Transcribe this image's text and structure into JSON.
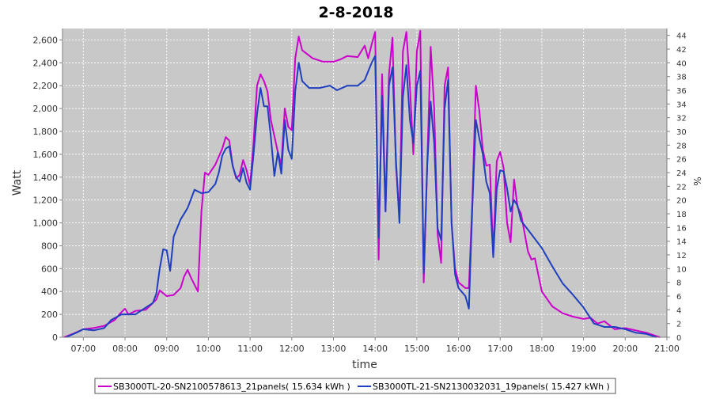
{
  "chart_data": {
    "type": "line",
    "title": "2-8-2018",
    "xlabel": "time",
    "ylabel": "Watt",
    "y2label": "%",
    "ylim": [
      0,
      2700
    ],
    "y2lim": [
      0,
      45
    ],
    "xlim": [
      "06:30",
      "21:00"
    ],
    "grid": true,
    "legend_position": "bottom",
    "y_ticks": [
      "0",
      "200",
      "400",
      "600",
      "800",
      "1,000",
      "1,200",
      "1,400",
      "1,600",
      "1,800",
      "2,000",
      "2,200",
      "2,400",
      "2,600"
    ],
    "y2_ticks": [
      "0",
      "2",
      "4",
      "6",
      "8",
      "10",
      "12",
      "14",
      "16",
      "18",
      "20",
      "22",
      "24",
      "26",
      "28",
      "30",
      "32",
      "34",
      "36",
      "38",
      "40",
      "42",
      "44"
    ],
    "x_ticks": [
      "07:00",
      "08:00",
      "09:00",
      "10:00",
      "11:00",
      "12:00",
      "13:00",
      "14:00",
      "15:00",
      "16:00",
      "17:00",
      "18:00",
      "19:00",
      "20:00",
      "21:00"
    ],
    "series": [
      {
        "name": "SB3000TL-20-SN2100578613_21panels( 15.634 kWh )",
        "color": "#cc00cc",
        "points": [
          [
            "06:32",
            0
          ],
          [
            "06:45",
            30
          ],
          [
            "07:00",
            70
          ],
          [
            "07:15",
            80
          ],
          [
            "07:30",
            100
          ],
          [
            "07:45",
            150
          ],
          [
            "07:55",
            220
          ],
          [
            "08:00",
            250
          ],
          [
            "08:05",
            200
          ],
          [
            "08:15",
            230
          ],
          [
            "08:30",
            240
          ],
          [
            "08:45",
            330
          ],
          [
            "08:50",
            410
          ],
          [
            "09:00",
            360
          ],
          [
            "09:10",
            370
          ],
          [
            "09:20",
            430
          ],
          [
            "09:25",
            530
          ],
          [
            "09:30",
            590
          ],
          [
            "09:35",
            520
          ],
          [
            "09:45",
            400
          ],
          [
            "09:50",
            1100
          ],
          [
            "09:55",
            1440
          ],
          [
            "10:00",
            1420
          ],
          [
            "10:10",
            1510
          ],
          [
            "10:20",
            1650
          ],
          [
            "10:25",
            1750
          ],
          [
            "10:30",
            1720
          ],
          [
            "10:35",
            1500
          ],
          [
            "10:40",
            1390
          ],
          [
            "10:45",
            1420
          ],
          [
            "10:50",
            1550
          ],
          [
            "10:55",
            1460
          ],
          [
            "11:00",
            1330
          ],
          [
            "11:05",
            1700
          ],
          [
            "11:10",
            2200
          ],
          [
            "11:15",
            2300
          ],
          [
            "11:20",
            2240
          ],
          [
            "11:25",
            2150
          ],
          [
            "11:30",
            1900
          ],
          [
            "11:35",
            1760
          ],
          [
            "11:40",
            1620
          ],
          [
            "11:45",
            1510
          ],
          [
            "11:50",
            2000
          ],
          [
            "11:55",
            1840
          ],
          [
            "12:00",
            1810
          ],
          [
            "12:05",
            2440
          ],
          [
            "12:10",
            2630
          ],
          [
            "12:15",
            2510
          ],
          [
            "12:30",
            2440
          ],
          [
            "12:45",
            2410
          ],
          [
            "13:00",
            2410
          ],
          [
            "13:10",
            2430
          ],
          [
            "13:20",
            2460
          ],
          [
            "13:35",
            2450
          ],
          [
            "13:45",
            2550
          ],
          [
            "13:50",
            2440
          ],
          [
            "13:55",
            2560
          ],
          [
            "14:00",
            2670
          ],
          [
            "14:05",
            680
          ],
          [
            "14:10",
            2300
          ],
          [
            "14:15",
            1100
          ],
          [
            "14:20",
            2300
          ],
          [
            "14:25",
            2620
          ],
          [
            "14:30",
            1500
          ],
          [
            "14:35",
            1050
          ],
          [
            "14:40",
            2500
          ],
          [
            "14:45",
            2670
          ],
          [
            "14:50",
            2200
          ],
          [
            "14:55",
            1600
          ],
          [
            "15:00",
            2500
          ],
          [
            "15:05",
            2680
          ],
          [
            "15:10",
            480
          ],
          [
            "15:15",
            1500
          ],
          [
            "15:20",
            2540
          ],
          [
            "15:25",
            2000
          ],
          [
            "15:30",
            900
          ],
          [
            "15:35",
            650
          ],
          [
            "15:40",
            2200
          ],
          [
            "15:45",
            2360
          ],
          [
            "15:50",
            1000
          ],
          [
            "15:55",
            600
          ],
          [
            "16:00",
            480
          ],
          [
            "16:10",
            430
          ],
          [
            "16:15",
            430
          ],
          [
            "16:20",
            1200
          ],
          [
            "16:25",
            2200
          ],
          [
            "16:30",
            1980
          ],
          [
            "16:35",
            1640
          ],
          [
            "16:40",
            1500
          ],
          [
            "16:45",
            1510
          ],
          [
            "16:50",
            720
          ],
          [
            "16:55",
            1540
          ],
          [
            "17:00",
            1620
          ],
          [
            "17:05",
            1480
          ],
          [
            "17:10",
            1000
          ],
          [
            "17:15",
            830
          ],
          [
            "17:20",
            1380
          ],
          [
            "17:25",
            1140
          ],
          [
            "17:30",
            1080
          ],
          [
            "17:40",
            750
          ],
          [
            "17:45",
            680
          ],
          [
            "17:50",
            690
          ],
          [
            "18:00",
            400
          ],
          [
            "18:15",
            270
          ],
          [
            "18:30",
            210
          ],
          [
            "18:45",
            180
          ],
          [
            "19:00",
            160
          ],
          [
            "19:10",
            170
          ],
          [
            "19:20",
            120
          ],
          [
            "19:30",
            140
          ],
          [
            "19:45",
            70
          ],
          [
            "20:00",
            80
          ],
          [
            "20:15",
            60
          ],
          [
            "20:30",
            40
          ],
          [
            "20:45",
            10
          ],
          [
            "20:50",
            0
          ]
        ]
      },
      {
        "name": "SB3000TL-21-SN2130032031_19panels( 15.427 kWh )",
        "color": "#1f3fbf",
        "points": [
          [
            "06:35",
            0
          ],
          [
            "06:50",
            40
          ],
          [
            "07:00",
            70
          ],
          [
            "07:15",
            60
          ],
          [
            "07:30",
            80
          ],
          [
            "07:40",
            150
          ],
          [
            "07:55",
            200
          ],
          [
            "08:05",
            200
          ],
          [
            "08:15",
            200
          ],
          [
            "08:30",
            260
          ],
          [
            "08:40",
            300
          ],
          [
            "08:45",
            380
          ],
          [
            "08:50",
            600
          ],
          [
            "08:55",
            770
          ],
          [
            "09:00",
            760
          ],
          [
            "09:05",
            580
          ],
          [
            "09:10",
            880
          ],
          [
            "09:20",
            1030
          ],
          [
            "09:30",
            1130
          ],
          [
            "09:40",
            1290
          ],
          [
            "09:50",
            1260
          ],
          [
            "10:00",
            1270
          ],
          [
            "10:10",
            1340
          ],
          [
            "10:15",
            1440
          ],
          [
            "10:20",
            1590
          ],
          [
            "10:25",
            1650
          ],
          [
            "10:30",
            1670
          ],
          [
            "10:35",
            1500
          ],
          [
            "10:40",
            1400
          ],
          [
            "10:45",
            1360
          ],
          [
            "10:50",
            1480
          ],
          [
            "10:55",
            1350
          ],
          [
            "11:00",
            1290
          ],
          [
            "11:05",
            1600
          ],
          [
            "11:10",
            1950
          ],
          [
            "11:15",
            2180
          ],
          [
            "11:20",
            2020
          ],
          [
            "11:25",
            2020
          ],
          [
            "11:30",
            1750
          ],
          [
            "11:35",
            1410
          ],
          [
            "11:40",
            1620
          ],
          [
            "11:45",
            1430
          ],
          [
            "11:50",
            1900
          ],
          [
            "11:55",
            1640
          ],
          [
            "12:00",
            1560
          ],
          [
            "12:05",
            2150
          ],
          [
            "12:10",
            2400
          ],
          [
            "12:15",
            2240
          ],
          [
            "12:25",
            2180
          ],
          [
            "12:40",
            2180
          ],
          [
            "12:55",
            2200
          ],
          [
            "13:05",
            2160
          ],
          [
            "13:20",
            2200
          ],
          [
            "13:35",
            2200
          ],
          [
            "13:45",
            2250
          ],
          [
            "13:55",
            2400
          ],
          [
            "14:00",
            2460
          ],
          [
            "14:05",
            870
          ],
          [
            "14:10",
            2110
          ],
          [
            "14:15",
            1100
          ],
          [
            "14:20",
            2200
          ],
          [
            "14:25",
            2360
          ],
          [
            "14:30",
            1550
          ],
          [
            "14:35",
            1000
          ],
          [
            "14:40",
            2100
          ],
          [
            "14:45",
            2380
          ],
          [
            "14:50",
            1900
          ],
          [
            "14:55",
            1700
          ],
          [
            "15:00",
            2200
          ],
          [
            "15:05",
            2330
          ],
          [
            "15:10",
            560
          ],
          [
            "15:15",
            1500
          ],
          [
            "15:20",
            2060
          ],
          [
            "15:25",
            1700
          ],
          [
            "15:30",
            950
          ],
          [
            "15:35",
            850
          ],
          [
            "15:40",
            2000
          ],
          [
            "15:45",
            2250
          ],
          [
            "15:50",
            1000
          ],
          [
            "15:55",
            550
          ],
          [
            "16:00",
            430
          ],
          [
            "16:10",
            360
          ],
          [
            "16:15",
            250
          ],
          [
            "16:20",
            1150
          ],
          [
            "16:25",
            1900
          ],
          [
            "16:30",
            1740
          ],
          [
            "16:35",
            1600
          ],
          [
            "16:40",
            1360
          ],
          [
            "16:45",
            1260
          ],
          [
            "16:50",
            700
          ],
          [
            "16:55",
            1300
          ],
          [
            "17:00",
            1460
          ],
          [
            "17:05",
            1450
          ],
          [
            "17:10",
            1300
          ],
          [
            "17:15",
            1100
          ],
          [
            "17:20",
            1200
          ],
          [
            "17:25",
            1150
          ],
          [
            "17:30",
            1020
          ],
          [
            "17:45",
            900
          ],
          [
            "18:00",
            780
          ],
          [
            "18:15",
            620
          ],
          [
            "18:30",
            470
          ],
          [
            "18:45",
            370
          ],
          [
            "19:00",
            260
          ],
          [
            "19:15",
            120
          ],
          [
            "19:30",
            90
          ],
          [
            "19:45",
            90
          ],
          [
            "20:00",
            70
          ],
          [
            "20:15",
            40
          ],
          [
            "20:30",
            30
          ],
          [
            "20:40",
            10
          ],
          [
            "20:45",
            0
          ]
        ]
      }
    ]
  }
}
